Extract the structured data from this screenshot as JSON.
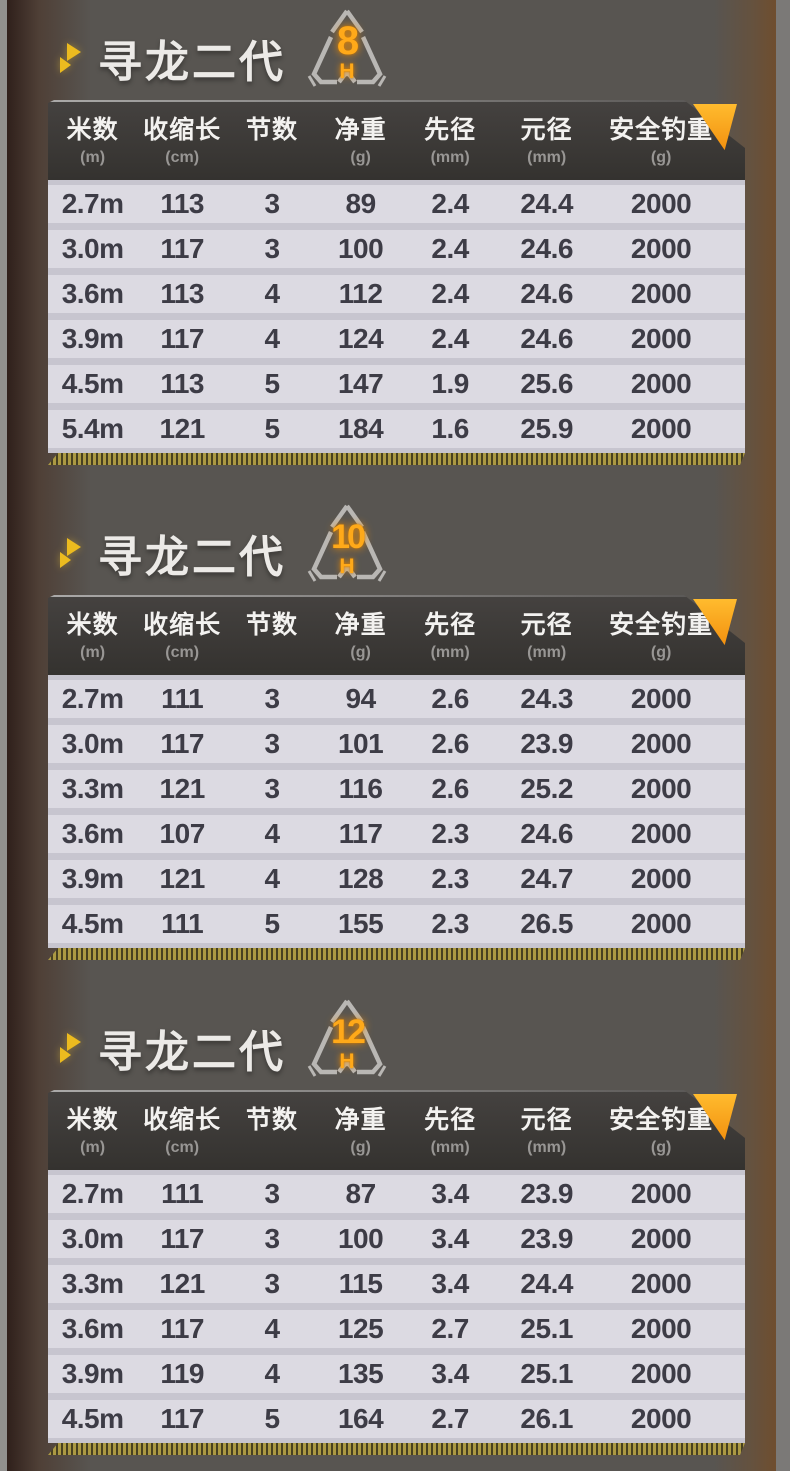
{
  "page": {
    "background": "#585551",
    "accent_orange": "#ffa919",
    "accent_yellow": "#ecbb1f",
    "header_bg": "#393734",
    "row_bg": "#dcdae2",
    "row_gap_bg": "#c7c5cf",
    "gold_stripe": "#ab9943",
    "icons": {
      "bullet": "double-right-arrow",
      "corner": "folded-corner-triangle",
      "badge": "triangle-shield-emblem"
    }
  },
  "sections": [
    {
      "title": "寻龙二代",
      "badge_power": "8",
      "badge_letter": "H",
      "columns": [
        {
          "label": "米数",
          "unit": "(m)"
        },
        {
          "label": "收缩长",
          "unit": "(cm)"
        },
        {
          "label": "节数",
          "unit": ""
        },
        {
          "label": "净重",
          "unit": "(g)"
        },
        {
          "label": "先径",
          "unit": "(mm)"
        },
        {
          "label": "元径",
          "unit": "(mm)"
        },
        {
          "label": "安全钓重",
          "unit": "(g)"
        }
      ],
      "rows": [
        [
          "2.7m",
          "113",
          "3",
          "89",
          "2.4",
          "24.4",
          "2000"
        ],
        [
          "3.0m",
          "117",
          "3",
          "100",
          "2.4",
          "24.6",
          "2000"
        ],
        [
          "3.6m",
          "113",
          "4",
          "112",
          "2.4",
          "24.6",
          "2000"
        ],
        [
          "3.9m",
          "117",
          "4",
          "124",
          "2.4",
          "24.6",
          "2000"
        ],
        [
          "4.5m",
          "113",
          "5",
          "147",
          "1.9",
          "25.6",
          "2000"
        ],
        [
          "5.4m",
          "121",
          "5",
          "184",
          "1.6",
          "25.9",
          "2000"
        ]
      ]
    },
    {
      "title": "寻龙二代",
      "badge_power": "10",
      "badge_letter": "H",
      "columns": [
        {
          "label": "米数",
          "unit": "(m)"
        },
        {
          "label": "收缩长",
          "unit": "(cm)"
        },
        {
          "label": "节数",
          "unit": ""
        },
        {
          "label": "净重",
          "unit": "(g)"
        },
        {
          "label": "先径",
          "unit": "(mm)"
        },
        {
          "label": "元径",
          "unit": "(mm)"
        },
        {
          "label": "安全钓重",
          "unit": "(g)"
        }
      ],
      "rows": [
        [
          "2.7m",
          "111",
          "3",
          "94",
          "2.6",
          "24.3",
          "2000"
        ],
        [
          "3.0m",
          "117",
          "3",
          "101",
          "2.6",
          "23.9",
          "2000"
        ],
        [
          "3.3m",
          "121",
          "3",
          "116",
          "2.6",
          "25.2",
          "2000"
        ],
        [
          "3.6m",
          "107",
          "4",
          "117",
          "2.3",
          "24.6",
          "2000"
        ],
        [
          "3.9m",
          "121",
          "4",
          "128",
          "2.3",
          "24.7",
          "2000"
        ],
        [
          "4.5m",
          "111",
          "5",
          "155",
          "2.3",
          "26.5",
          "2000"
        ]
      ]
    },
    {
      "title": "寻龙二代",
      "badge_power": "12",
      "badge_letter": "H",
      "columns": [
        {
          "label": "米数",
          "unit": "(m)"
        },
        {
          "label": "收缩长",
          "unit": "(cm)"
        },
        {
          "label": "节数",
          "unit": ""
        },
        {
          "label": "净重",
          "unit": "(g)"
        },
        {
          "label": "先径",
          "unit": "(mm)"
        },
        {
          "label": "元径",
          "unit": "(mm)"
        },
        {
          "label": "安全钓重",
          "unit": "(g)"
        }
      ],
      "rows": [
        [
          "2.7m",
          "111",
          "3",
          "87",
          "3.4",
          "23.9",
          "2000"
        ],
        [
          "3.0m",
          "117",
          "3",
          "100",
          "3.4",
          "23.9",
          "2000"
        ],
        [
          "3.3m",
          "121",
          "3",
          "115",
          "3.4",
          "24.4",
          "2000"
        ],
        [
          "3.6m",
          "117",
          "4",
          "125",
          "2.7",
          "25.1",
          "2000"
        ],
        [
          "3.9m",
          "119",
          "4",
          "135",
          "3.4",
          "25.1",
          "2000"
        ],
        [
          "4.5m",
          "117",
          "5",
          "164",
          "2.7",
          "26.1",
          "2000"
        ]
      ]
    }
  ]
}
